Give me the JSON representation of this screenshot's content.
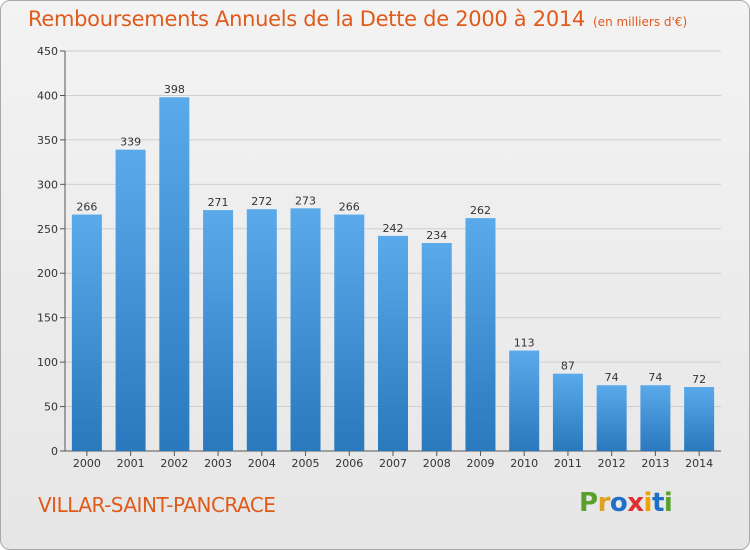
{
  "title": "Remboursements Annuels de la Dette de 2000 à 2014",
  "subtitle": "(en milliers d'€)",
  "city": "VILLAR-SAINT-PANCRACE",
  "logo": {
    "text": "Proxiti",
    "letter_colors": [
      "#5aa02c",
      "#e0a020",
      "#1e6fc8",
      "#e03030",
      "#f0a000",
      "#1e6fc8",
      "#5aa02c"
    ]
  },
  "colors": {
    "accent": "#e05a1b",
    "bar_top": "#5aaaeb",
    "bar_bottom": "#2a78bd",
    "grid": "#cfcfcf"
  },
  "chart_data": {
    "type": "bar",
    "categories": [
      "2000",
      "2001",
      "2002",
      "2003",
      "2004",
      "2005",
      "2006",
      "2007",
      "2008",
      "2009",
      "2010",
      "2011",
      "2012",
      "2013",
      "2014"
    ],
    "values": [
      266,
      339,
      398,
      271,
      272,
      273,
      266,
      242,
      234,
      262,
      113,
      87,
      74,
      74,
      72
    ],
    "ylim": [
      0,
      450
    ],
    "yticks": [
      0,
      50,
      100,
      150,
      200,
      250,
      300,
      350,
      400,
      450
    ],
    "grid": true,
    "xlabel": "",
    "ylabel": ""
  }
}
